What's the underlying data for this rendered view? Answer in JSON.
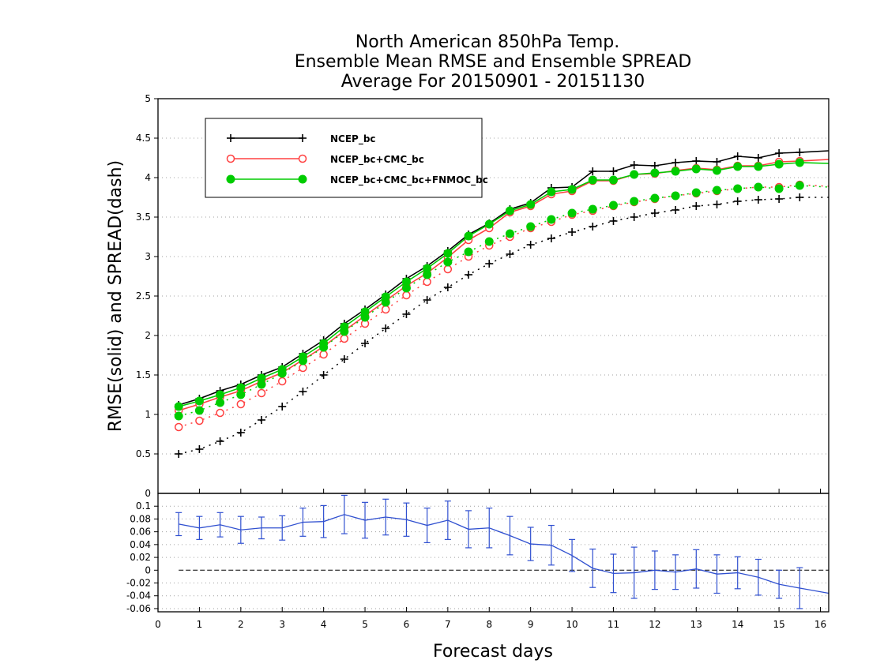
{
  "chart_data": {
    "type": "line",
    "title": [
      "North American 850hPa Temp.",
      "Ensemble Mean RMSE and Ensemble SPREAD",
      "Average For 20150901 - 20151130"
    ],
    "xlabel": "Forecast days",
    "ylabel": "RMSE(solid)  and  SPREAD(dash)",
    "xlim": [
      0,
      16.2
    ],
    "xticks": [
      "0",
      "1",
      "2",
      "3",
      "4",
      "5",
      "6",
      "7",
      "8",
      "9",
      "10",
      "11",
      "12",
      "13",
      "14",
      "15",
      "16"
    ],
    "main_panel": {
      "ylim": [
        0,
        5
      ],
      "yticks": [
        "0.5",
        "1",
        "1.5",
        "2",
        "2.5",
        "3",
        "3.5",
        "4",
        "4.5",
        "5"
      ],
      "grid": true,
      "legend_position": "top-left",
      "x": [
        0.5,
        1,
        1.5,
        2,
        2.5,
        3,
        3.5,
        4,
        4.5,
        5,
        5.5,
        6,
        6.5,
        7,
        7.5,
        8,
        8.5,
        9,
        9.5,
        10,
        10.5,
        11,
        11.5,
        12,
        12.5,
        13,
        13.5,
        14,
        14.5,
        15,
        15.5,
        16.2
      ],
      "series": [
        {
          "name": "NCEP_bc",
          "color": "#000000",
          "marker": "plus",
          "rmse": [
            1.12,
            1.2,
            1.3,
            1.38,
            1.5,
            1.6,
            1.77,
            1.94,
            2.15,
            2.33,
            2.52,
            2.72,
            2.88,
            3.07,
            3.28,
            3.42,
            3.6,
            3.68,
            3.87,
            3.88,
            4.08,
            4.08,
            4.16,
            4.15,
            4.19,
            4.21,
            4.2,
            4.27,
            4.25,
            4.31,
            4.32,
            4.34
          ],
          "spread": [
            0.5,
            0.56,
            0.66,
            0.77,
            0.93,
            1.1,
            1.29,
            1.5,
            1.7,
            1.9,
            2.09,
            2.27,
            2.45,
            2.61,
            2.77,
            2.91,
            3.03,
            3.15,
            3.23,
            3.31,
            3.38,
            3.45,
            3.5,
            3.55,
            3.59,
            3.64,
            3.66,
            3.7,
            3.72,
            3.73,
            3.75,
            3.75
          ]
        },
        {
          "name": "NCEP_bc+CMC_bc",
          "color": "#ff4040",
          "marker": "open-circle",
          "rmse": [
            1.05,
            1.13,
            1.22,
            1.3,
            1.42,
            1.53,
            1.69,
            1.86,
            2.06,
            2.25,
            2.44,
            2.63,
            2.79,
            2.99,
            3.21,
            3.36,
            3.56,
            3.64,
            3.79,
            3.83,
            3.96,
            3.96,
            4.04,
            4.05,
            4.09,
            4.12,
            4.1,
            4.15,
            4.15,
            4.2,
            4.21,
            4.23
          ],
          "spread": [
            0.84,
            0.92,
            1.02,
            1.13,
            1.27,
            1.42,
            1.59,
            1.76,
            1.96,
            2.15,
            2.33,
            2.51,
            2.68,
            2.84,
            3.0,
            3.14,
            3.25,
            3.36,
            3.44,
            3.53,
            3.58,
            3.64,
            3.69,
            3.73,
            3.77,
            3.8,
            3.83,
            3.86,
            3.88,
            3.88,
            3.91,
            3.89
          ]
        },
        {
          "name": "NCEP_bc+CMC_bc+FNMOC_bc",
          "color": "#00cc00",
          "marker": "filled-circle",
          "rmse": [
            1.1,
            1.17,
            1.25,
            1.34,
            1.46,
            1.57,
            1.73,
            1.9,
            2.11,
            2.3,
            2.49,
            2.68,
            2.85,
            3.04,
            3.26,
            3.41,
            3.58,
            3.66,
            3.82,
            3.85,
            3.97,
            3.97,
            4.04,
            4.06,
            4.08,
            4.11,
            4.09,
            4.14,
            4.14,
            4.17,
            4.19,
            4.18
          ],
          "spread": [
            0.98,
            1.05,
            1.15,
            1.25,
            1.38,
            1.52,
            1.68,
            1.85,
            2.05,
            2.23,
            2.42,
            2.6,
            2.77,
            2.93,
            3.06,
            3.19,
            3.29,
            3.38,
            3.47,
            3.55,
            3.6,
            3.65,
            3.7,
            3.74,
            3.77,
            3.81,
            3.84,
            3.86,
            3.88,
            3.86,
            3.9,
            3.88
          ]
        }
      ]
    },
    "bottom_panel": {
      "ylim": [
        -0.065,
        0.12
      ],
      "yticks": [
        "0.1",
        "0.08",
        "0.06",
        "0.04",
        "0.02",
        "0",
        "-0.02",
        "-0.04",
        "-0.06"
      ],
      "top_label": "0",
      "grid": true,
      "color": "#3050d0",
      "x": [
        0.5,
        1,
        1.5,
        2,
        2.5,
        3,
        3.5,
        4,
        4.5,
        5,
        5.5,
        6,
        6.5,
        7,
        7.5,
        8,
        8.5,
        9,
        9.5,
        10,
        10.5,
        11,
        11.5,
        12,
        12.5,
        13,
        13.5,
        14,
        14.5,
        15,
        15.5,
        16.2
      ],
      "values": [
        0.072,
        0.066,
        0.071,
        0.063,
        0.066,
        0.066,
        0.075,
        0.076,
        0.087,
        0.078,
        0.083,
        0.079,
        0.07,
        0.078,
        0.064,
        0.066,
        0.054,
        0.041,
        0.039,
        0.023,
        0.003,
        -0.005,
        -0.004,
        0.0,
        -0.003,
        0.002,
        -0.006,
        -0.004,
        -0.011,
        -0.022,
        -0.028,
        -0.036
      ],
      "errors": [
        0.018,
        0.018,
        0.019,
        0.021,
        0.017,
        0.019,
        0.022,
        0.025,
        0.03,
        0.028,
        0.028,
        0.026,
        0.027,
        0.03,
        0.029,
        0.031,
        0.03,
        0.026,
        0.031,
        0.025,
        0.03,
        0.03,
        0.04,
        0.03,
        0.027,
        0.03,
        0.03,
        0.025,
        0.028,
        0.022,
        0.032,
        0.03
      ]
    }
  }
}
